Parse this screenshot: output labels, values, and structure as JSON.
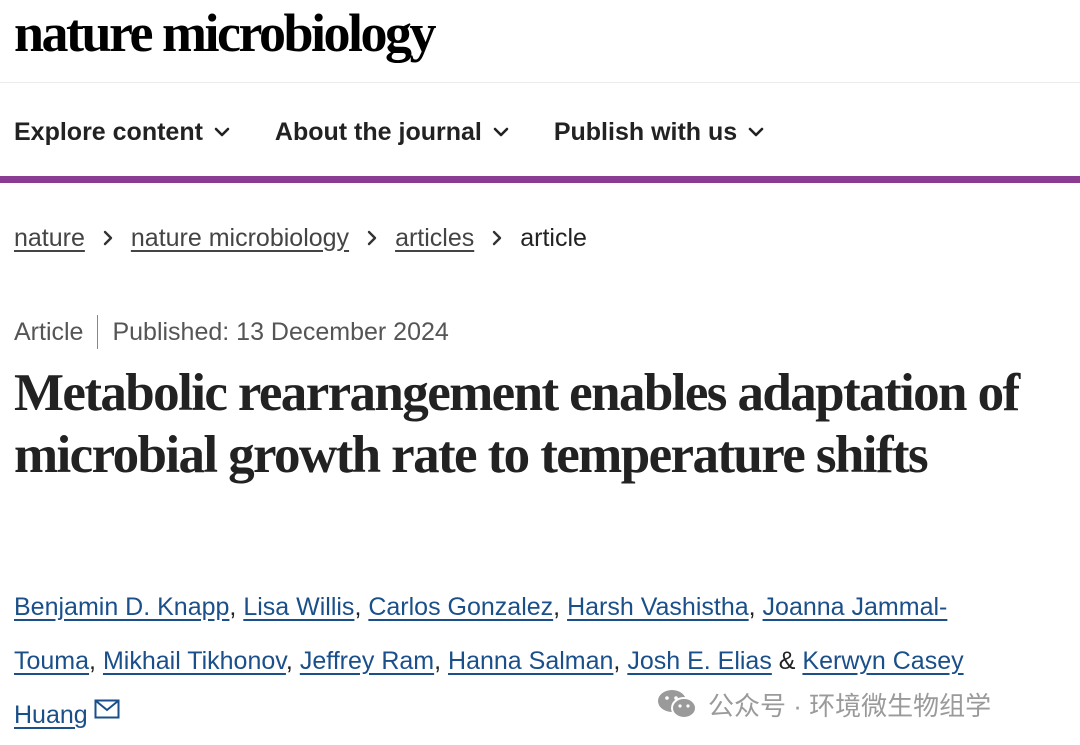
{
  "site": {
    "logo": "nature microbiology"
  },
  "nav": {
    "items": [
      {
        "label": "Explore content"
      },
      {
        "label": "About the journal"
      },
      {
        "label": "Publish with us"
      }
    ]
  },
  "breadcrumb": {
    "items": [
      {
        "label": "nature"
      },
      {
        "label": "nature microbiology"
      },
      {
        "label": "articles"
      },
      {
        "label": "article"
      }
    ]
  },
  "article": {
    "type": "Article",
    "published": "Published: 13 December 2024",
    "title": "Metabolic rearrangement enables adaptation of microbial growth rate to temperature shifts",
    "authors": [
      "Benjamin D. Knapp",
      "Lisa Willis",
      "Carlos Gonzalez",
      "Harsh Vashistha",
      "Joanna Jammal-Touma",
      "Mikhail Tikhonov",
      "Jeffrey Ram",
      "Hanna Salman",
      "Josh E. Elias",
      "Kerwyn Casey Huang"
    ],
    "author_separator": ", ",
    "last_separator": " & "
  },
  "watermark": {
    "text": "公众号 · 环境微生物组学"
  },
  "colors": {
    "accent": "#8a3c92",
    "link": "#1a4f8a",
    "text": "#222222",
    "muted": "#555555"
  },
  "icons": {
    "nav_dropdown": "chevron-down-icon",
    "breadcrumb_separator": "chevron-right-icon",
    "corresponding_author": "envelope-icon",
    "watermark": "wechat-icon"
  }
}
